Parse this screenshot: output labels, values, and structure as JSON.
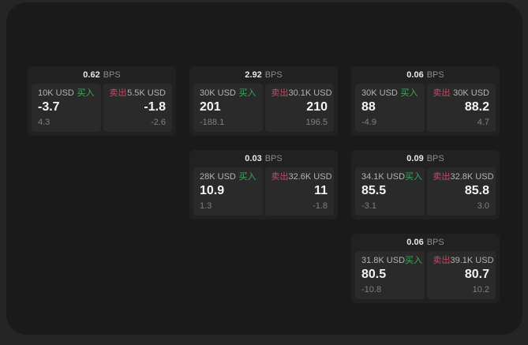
{
  "labels": {
    "bps_unit": "BPS",
    "buy": "买入",
    "sell": "卖出"
  },
  "colors": {
    "buy_green": "#3aa85f",
    "sell_red": "#c24a66",
    "window_bg": "#1a1a1a",
    "card_bg": "#212121",
    "panel_bg": "#2a2a2a"
  },
  "cards": [
    {
      "bps": "0.62",
      "buy": {
        "amount": "10K USD",
        "price": "-3.7",
        "delta": "4.3"
      },
      "sell": {
        "amount": "5.5K USD",
        "price": "-1.8",
        "delta": "-2.6"
      }
    },
    {
      "bps": "2.92",
      "buy": {
        "amount": "30K USD",
        "price": "201",
        "delta": "-188.1"
      },
      "sell": {
        "amount": "30.1K USD",
        "price": "210",
        "delta": "196.5"
      }
    },
    {
      "bps": "0.06",
      "buy": {
        "amount": "30K USD",
        "price": "88",
        "delta": "-4.9"
      },
      "sell": {
        "amount": "30K USD",
        "price": "88.2",
        "delta": "4.7"
      }
    },
    {
      "bps": "0.03",
      "buy": {
        "amount": "28K USD",
        "price": "10.9",
        "delta": "1.3"
      },
      "sell": {
        "amount": "32.6K USD",
        "price": "11",
        "delta": "-1.8"
      }
    },
    {
      "bps": "0.09",
      "buy": {
        "amount": "34.1K USD",
        "price": "85.5",
        "delta": "-3.1"
      },
      "sell": {
        "amount": "32.8K USD",
        "price": "85.8",
        "delta": "3.0"
      }
    },
    {
      "bps": "0.06",
      "buy": {
        "amount": "31.8K USD",
        "price": "80.5",
        "delta": "-10.8"
      },
      "sell": {
        "amount": "39.1K USD",
        "price": "80.7",
        "delta": "10.2"
      }
    }
  ]
}
